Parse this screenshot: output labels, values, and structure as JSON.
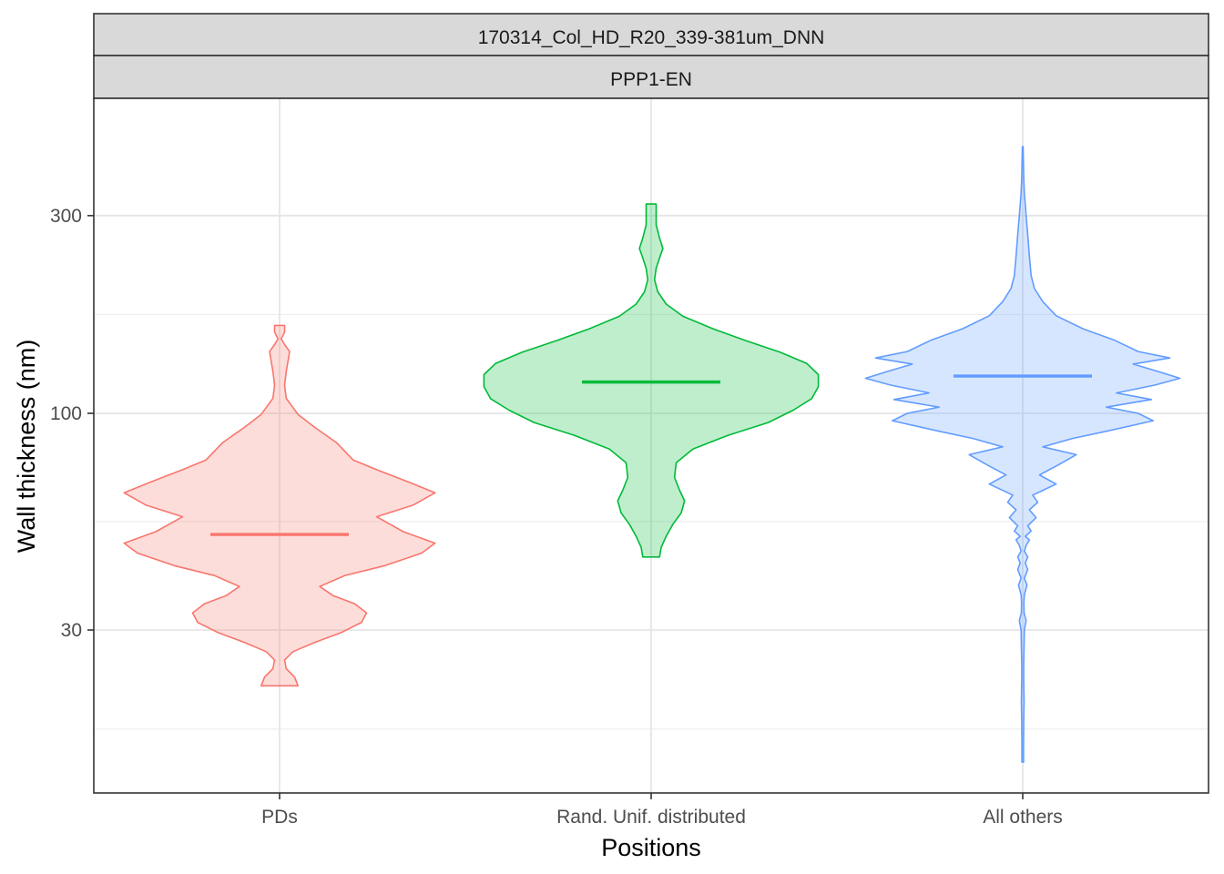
{
  "chart_data": {
    "type": "violin",
    "facet_labels": [
      "170314_Col_HD_R20_339-381um_DNN",
      "PPP1-EN"
    ],
    "xlabel": "Positions",
    "ylabel": "Wall thickness (nm)",
    "y_scale": "log10",
    "ylim": [
      13,
      480
    ],
    "y_major_ticks": [
      30,
      100,
      300
    ],
    "y_minor_ticks": [
      17.3,
      54.8,
      173.2
    ],
    "grid": true,
    "legend": "none",
    "categories": [
      "PDs",
      "Rand. Unif. distributed",
      "All others"
    ],
    "series": [
      {
        "category": "PDs",
        "color": "#F8766D",
        "fill": "#F8766D",
        "median": 51,
        "min": 22,
        "max": 163,
        "density": [
          [
            22.0,
            0.11
          ],
          [
            23.1,
            0.09
          ],
          [
            24.2,
            0.04
          ],
          [
            25.4,
            0.03
          ],
          [
            26.6,
            0.08
          ],
          [
            28.0,
            0.21
          ],
          [
            29.6,
            0.37
          ],
          [
            31.3,
            0.49
          ],
          [
            33.0,
            0.52
          ],
          [
            34.7,
            0.45
          ],
          [
            36.3,
            0.32
          ],
          [
            38.2,
            0.24
          ],
          [
            40.6,
            0.39
          ],
          [
            42.9,
            0.63
          ],
          [
            46.0,
            0.85
          ],
          [
            48.6,
            0.93
          ],
          [
            51.8,
            0.74
          ],
          [
            56.3,
            0.58
          ],
          [
            60.1,
            0.8
          ],
          [
            64.3,
            0.93
          ],
          [
            68.3,
            0.77
          ],
          [
            73.1,
            0.58
          ],
          [
            77.2,
            0.44
          ],
          [
            85.0,
            0.34
          ],
          [
            92.5,
            0.21
          ],
          [
            99.4,
            0.11
          ],
          [
            108.7,
            0.04
          ],
          [
            117.0,
            0.03
          ],
          [
            126.0,
            0.04
          ],
          [
            133.5,
            0.05
          ],
          [
            141.0,
            0.06
          ],
          [
            146.5,
            0.03
          ],
          [
            151.3,
            0.01
          ],
          [
            157.0,
            0.03
          ],
          [
            163.0,
            0.03
          ]
        ]
      },
      {
        "category": "Rand. Unif. distributed",
        "color": "#00BA38",
        "fill": "#00BA38",
        "median": 119,
        "min": 45,
        "max": 320,
        "density": [
          [
            45.0,
            0.05
          ],
          [
            47.5,
            0.06
          ],
          [
            50.5,
            0.09
          ],
          [
            54.0,
            0.13
          ],
          [
            57.5,
            0.18
          ],
          [
            61.5,
            0.2
          ],
          [
            65.2,
            0.17
          ],
          [
            70.0,
            0.14
          ],
          [
            76.0,
            0.15
          ],
          [
            82.0,
            0.25
          ],
          [
            88.5,
            0.46
          ],
          [
            95.0,
            0.7
          ],
          [
            101.8,
            0.85
          ],
          [
            108.5,
            0.96
          ],
          [
            116.0,
            1.0
          ],
          [
            124.0,
            1.0
          ],
          [
            132.0,
            0.93
          ],
          [
            140.5,
            0.77
          ],
          [
            150.0,
            0.56
          ],
          [
            160.0,
            0.37
          ],
          [
            171.5,
            0.19
          ],
          [
            183.5,
            0.09
          ],
          [
            196.5,
            0.04
          ],
          [
            210.0,
            0.02
          ],
          [
            224.0,
            0.03
          ],
          [
            237.0,
            0.05
          ],
          [
            250.0,
            0.07
          ],
          [
            265.0,
            0.05
          ],
          [
            285.0,
            0.03
          ],
          [
            303.0,
            0.03
          ],
          [
            320.0,
            0.03
          ]
        ]
      },
      {
        "category": "All others",
        "color": "#619CFF",
        "fill": "#619CFF",
        "median": 123,
        "min": 14.4,
        "max": 440,
        "density": [
          [
            14.4,
            0.005
          ],
          [
            16.0,
            0.005
          ],
          [
            18.0,
            0.006
          ],
          [
            20.2,
            0.008
          ],
          [
            22.5,
            0.006
          ],
          [
            25.0,
            0.006
          ],
          [
            27.5,
            0.008
          ],
          [
            30.0,
            0.01
          ],
          [
            31.6,
            0.02
          ],
          [
            33.0,
            0.008
          ],
          [
            35.0,
            0.007
          ],
          [
            36.5,
            0.01
          ],
          [
            38.5,
            0.025
          ],
          [
            40.0,
            0.01
          ],
          [
            42.0,
            0.03
          ],
          [
            43.5,
            0.015
          ],
          [
            45.0,
            0.03
          ],
          [
            46.5,
            0.01
          ],
          [
            48.0,
            0.02
          ],
          [
            49.5,
            0.04
          ],
          [
            50.5,
            0.015
          ],
          [
            52.0,
            0.05
          ],
          [
            53.5,
            0.03
          ],
          [
            56.0,
            0.08
          ],
          [
            58.5,
            0.04
          ],
          [
            61.0,
            0.09
          ],
          [
            63.5,
            0.06
          ],
          [
            67.5,
            0.2
          ],
          [
            71.0,
            0.1
          ],
          [
            75.0,
            0.21
          ],
          [
            79.5,
            0.32
          ],
          [
            83.0,
            0.12
          ],
          [
            87.0,
            0.3
          ],
          [
            90.5,
            0.5
          ],
          [
            96.0,
            0.78
          ],
          [
            100.0,
            0.69
          ],
          [
            103.5,
            0.5
          ],
          [
            108.0,
            0.77
          ],
          [
            112.0,
            0.56
          ],
          [
            117.0,
            0.79
          ],
          [
            121.5,
            0.94
          ],
          [
            126.5,
            0.8
          ],
          [
            131.5,
            0.66
          ],
          [
            136.0,
            0.88
          ],
          [
            141.0,
            0.69
          ],
          [
            150.0,
            0.55
          ],
          [
            160.0,
            0.36
          ],
          [
            172.0,
            0.2
          ],
          [
            186.0,
            0.12
          ],
          [
            200.0,
            0.07
          ],
          [
            215.0,
            0.05
          ],
          [
            240.0,
            0.04
          ],
          [
            270.0,
            0.03
          ],
          [
            300.0,
            0.02
          ],
          [
            340.0,
            0.01
          ],
          [
            370.0,
            0.006
          ],
          [
            410.0,
            0.004
          ],
          [
            440.0,
            0.002
          ]
        ]
      }
    ]
  }
}
